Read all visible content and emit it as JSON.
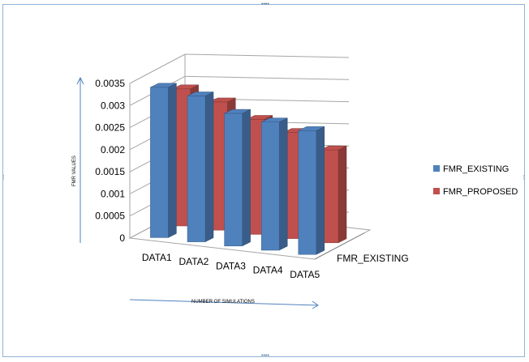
{
  "chart_data": {
    "type": "bar",
    "categories": [
      "DATA1",
      "DATA2",
      "DATA3",
      "DATA4",
      "DATA5"
    ],
    "series": [
      {
        "name": "FMR_EXISTING",
        "values": [
          0.0034,
          0.0033,
          0.003,
          0.0029,
          0.0028
        ],
        "color": "#4f81bd"
      },
      {
        "name": "FMR_PROPOSED",
        "values": [
          0.0031,
          0.0029,
          0.0026,
          0.0024,
          0.0021
        ],
        "color": "#c0504d"
      }
    ],
    "yticks": [
      "0",
      "0.0005",
      "0.001",
      "0.0015",
      "0.002",
      "0.0025",
      "0.003",
      "0.0035"
    ],
    "ylim": [
      0,
      0.0035
    ],
    "depth_axis_label": "FMR_EXISTING",
    "xlabel": "NUMBER OF SIMULATIONS",
    "ylabel": "FMR VALUES",
    "legend_position": "right",
    "grid": true
  }
}
